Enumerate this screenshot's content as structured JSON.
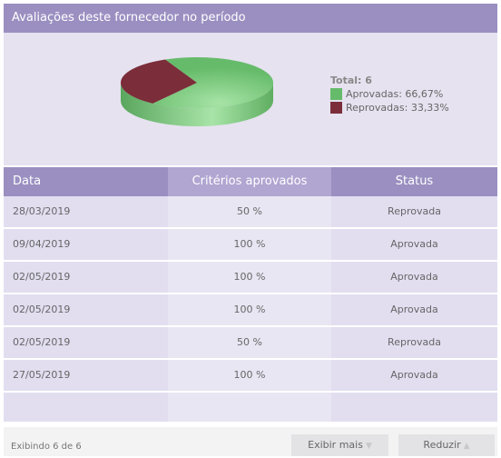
{
  "panel": {
    "title": "Avaliações deste fornecedor no período"
  },
  "chart_data": {
    "type": "pie",
    "total_label": "Total:",
    "total_value": "6",
    "slices": [
      {
        "name": "Aprovadas",
        "label": "Aprovadas: 66,67%",
        "value": 66.67,
        "color": "#66bb6a"
      },
      {
        "name": "Reprovadas",
        "label": "Reprovadas: 33,33%",
        "value": 33.33,
        "color": "#7b2d3a"
      }
    ],
    "style": "3d-tilted",
    "legend_position": "right"
  },
  "table": {
    "columns": [
      "Data",
      "Critérios aprovados",
      "Status"
    ],
    "rows": [
      [
        "28/03/2019",
        "50 %",
        "Reprovada"
      ],
      [
        "09/04/2019",
        "100 %",
        "Aprovada"
      ],
      [
        "02/05/2019",
        "100 %",
        "Aprovada"
      ],
      [
        "02/05/2019",
        "100 %",
        "Aprovada"
      ],
      [
        "02/05/2019",
        "50 %",
        "Reprovada"
      ],
      [
        "27/05/2019",
        "100 %",
        "Aprovada"
      ]
    ]
  },
  "footer": {
    "count_text": "Exibindo 6 de 6",
    "more_label": "Exibir mais",
    "less_label": "Reduzir",
    "more_icon": "triangle-down-icon",
    "less_icon": "triangle-up-icon"
  }
}
